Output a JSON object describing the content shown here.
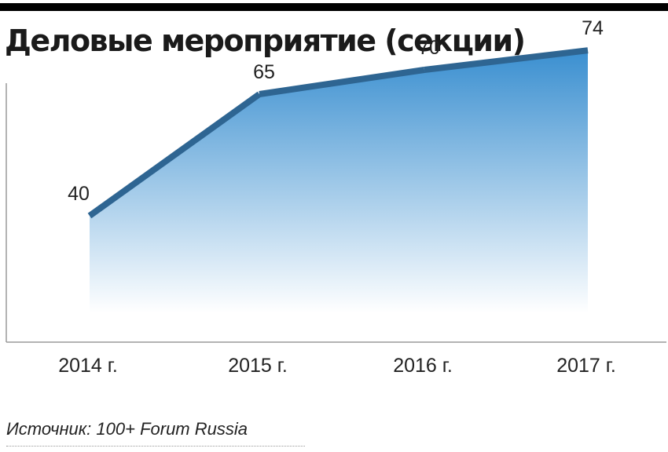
{
  "chart_data": {
    "type": "area",
    "title": "Деловые мероприятие (секции)",
    "categories": [
      "2014 г.",
      "2015 г.",
      "2016 г.",
      "2017 г."
    ],
    "values": [
      40,
      65,
      70,
      74
    ],
    "data_labels": [
      "40",
      "65",
      "70",
      "74"
    ],
    "ylim": [
      0,
      100
    ],
    "grid": false,
    "colors": {
      "line": "#2e6592",
      "fill_top": "#3a8fd0",
      "fill_bottom": "#ffffff"
    }
  },
  "source": "Источник: 100+ Forum Russia"
}
